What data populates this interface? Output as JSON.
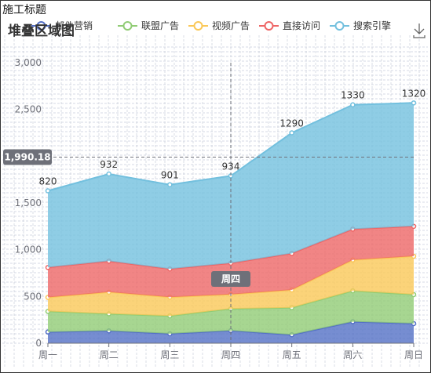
{
  "page": {
    "label": "施工标题"
  },
  "chart_data": {
    "type": "area",
    "stacked": true,
    "title": "堆叠区域图",
    "categories": [
      "周一",
      "周二",
      "周三",
      "周四",
      "周五",
      "周六",
      "周日"
    ],
    "ylim": [
      0,
      3000
    ],
    "yticks": [
      0,
      500,
      1000,
      1500,
      2000,
      2500,
      3000
    ],
    "ytick_labels": [
      "0",
      "500",
      "1,000",
      "1,500",
      "2,000",
      "2,500",
      "3,000"
    ],
    "grid": true,
    "legend_position": "top",
    "series": [
      {
        "name": "邮件营销",
        "values": [
          120,
          132,
          101,
          134,
          90,
          230,
          210
        ],
        "color": "#5470c6"
      },
      {
        "name": "联盟广告",
        "values": [
          220,
          182,
          191,
          234,
          290,
          330,
          310
        ],
        "color": "#91cc75"
      },
      {
        "name": "视频广告",
        "values": [
          150,
          232,
          201,
          154,
          190,
          330,
          410
        ],
        "color": "#fac858"
      },
      {
        "name": "直接访问",
        "values": [
          320,
          332,
          301,
          334,
          390,
          330,
          320
        ],
        "color": "#ee6666"
      },
      {
        "name": "搜索引擎",
        "values": [
          820,
          932,
          901,
          934,
          1290,
          1330,
          1320
        ],
        "color": "#73c0de"
      }
    ],
    "top_labels": [
      "820",
      "932",
      "901",
      "934",
      "1290",
      "1330",
      "1320"
    ],
    "axis_pointer": {
      "y_label": "1,990.18",
      "y_value": 1990.18,
      "x_label": "周四",
      "x_category": "周四"
    }
  },
  "toolbox": {
    "download_icon": "download-icon"
  }
}
